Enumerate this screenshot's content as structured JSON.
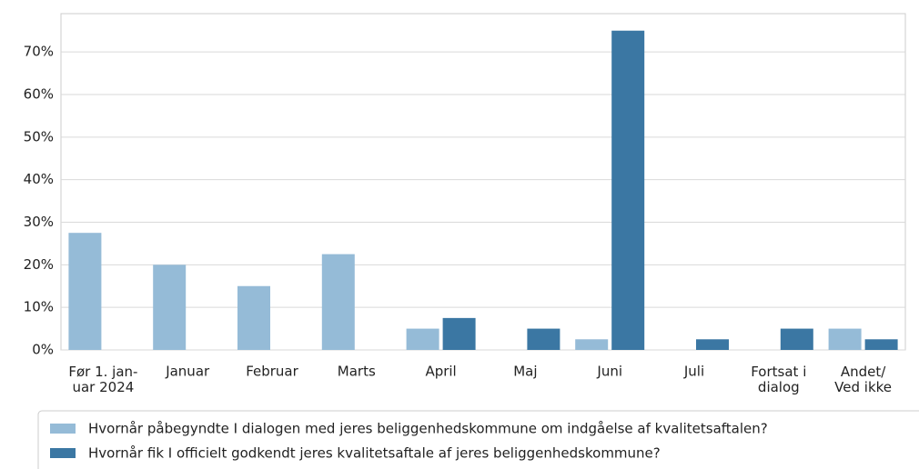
{
  "chart_data": {
    "type": "bar",
    "categories": [
      "Før 1. jan-\nuar 2024",
      "Januar",
      "Februar",
      "Marts",
      "April",
      "Maj",
      "Juni",
      "Juli",
      "Fortsat i\ndialog",
      "Andet/\nVed ikke"
    ],
    "series": [
      {
        "name": "Hvornår påbegyndte I dialogen med jeres beliggenhedskommune om indgåelse af kvalitetsaftalen?",
        "color": "#95bbd7",
        "values": [
          27.5,
          20,
          15,
          22.5,
          5,
          0,
          2.5,
          0,
          0,
          5
        ]
      },
      {
        "name": "Hvornår fik I officielt godkendt jeres kvalitetsaftale af jeres beliggenhedskommune?",
        "color": "#3b77a3",
        "values": [
          0,
          0,
          0,
          0,
          7.5,
          5,
          75,
          2.5,
          5,
          2.5
        ]
      }
    ],
    "ylim": [
      0,
      79
    ],
    "yticks": [
      {
        "value": 0,
        "label": "0%"
      },
      {
        "value": 10,
        "label": "10%"
      },
      {
        "value": 20,
        "label": "20%"
      },
      {
        "value": 30,
        "label": "30%"
      },
      {
        "value": 40,
        "label": "40%"
      },
      {
        "value": 50,
        "label": "50%"
      },
      {
        "value": 60,
        "label": "60%"
      },
      {
        "value": 70,
        "label": "70%"
      }
    ],
    "grid": true
  }
}
